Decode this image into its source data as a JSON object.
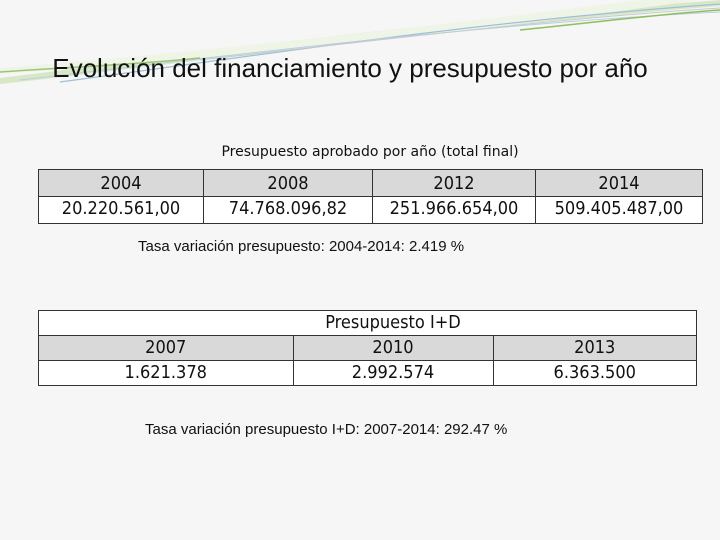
{
  "slide": {
    "title": "Evolución del financiamiento y presupuesto por año"
  },
  "table1": {
    "caption": "Presupuesto aprobado por año (total final)",
    "years": [
      "2004",
      "2008",
      "2012",
      "2014"
    ],
    "values": [
      "20.220.561,00",
      "74.768.096,82",
      "251.966.654,00",
      "509.405.487,00"
    ]
  },
  "rate1": "Tasa variación presupuesto: 2004-2014: 2.419 %",
  "table2": {
    "caption": "Presupuesto I+D",
    "years": [
      "2007",
      "2010",
      "2013"
    ],
    "values": [
      "1.621.378",
      "2.992.574",
      "6.363.500"
    ]
  },
  "rate2": "Tasa variación presupuesto I+D: 2007-2014: 292.47 %",
  "colors": {
    "header_fill": "#d9d9d9",
    "accent_green": "#8fbf5a",
    "accent_blue": "#7fa7c9"
  }
}
